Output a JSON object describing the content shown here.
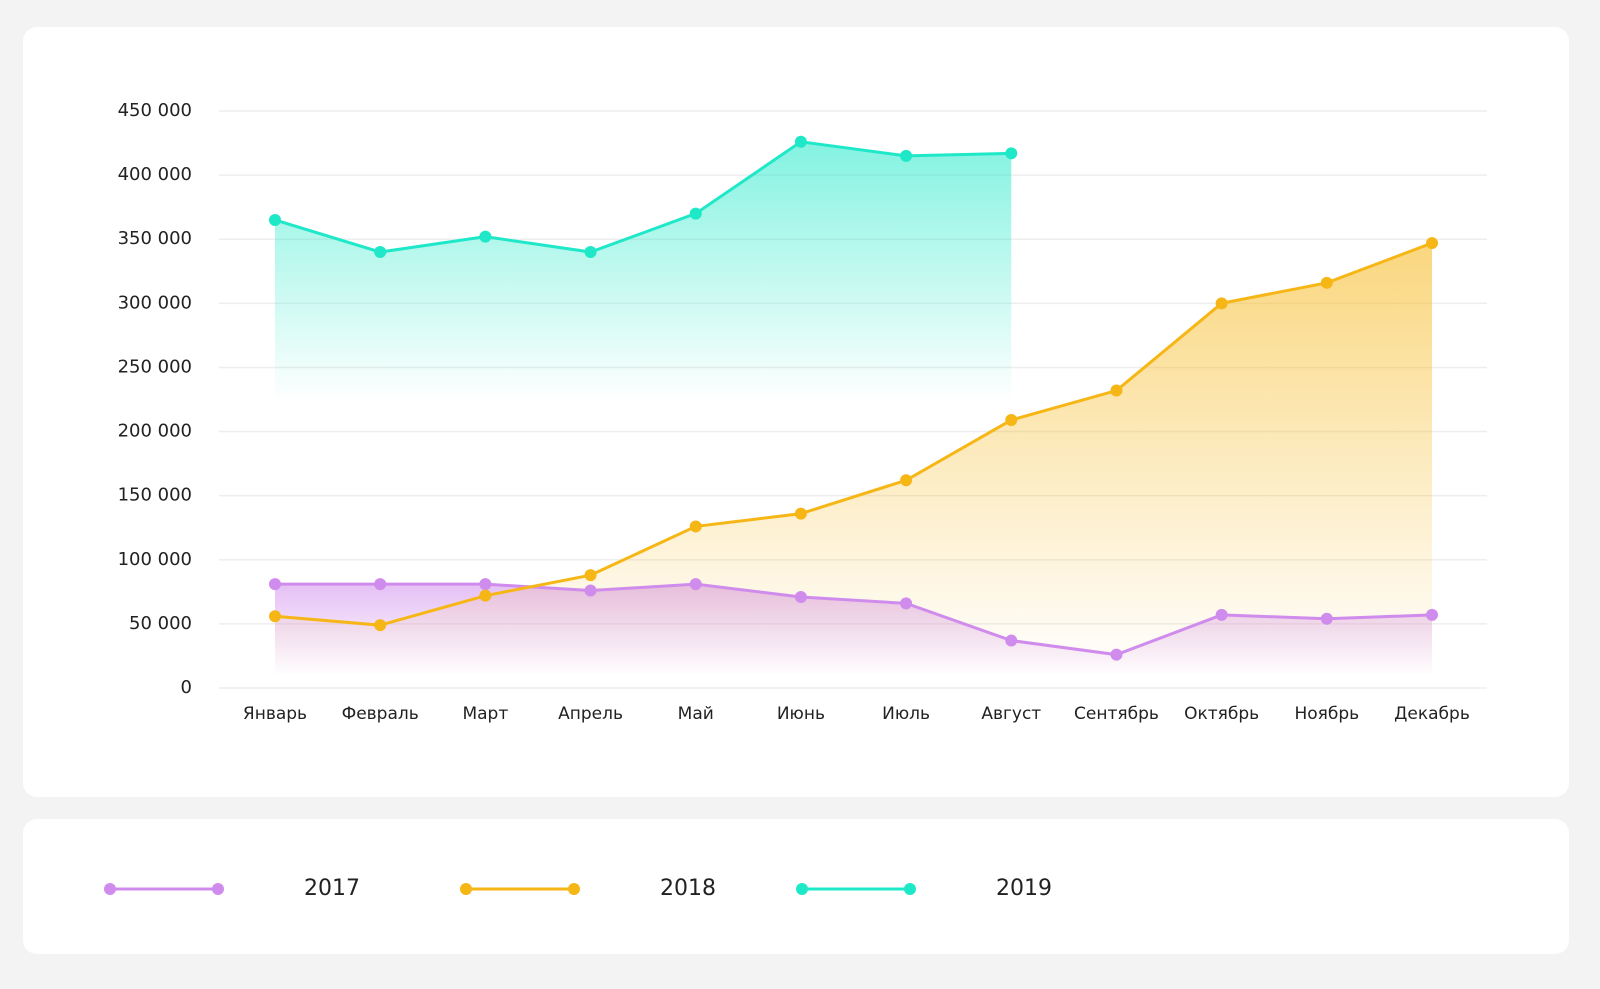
{
  "chart_data": {
    "type": "line",
    "categories": [
      "Январь",
      "Февраль",
      "Март",
      "Апрель",
      "Май",
      "Июнь",
      "Июль",
      "Август",
      "Сентябрь",
      "Октябрь",
      "Ноябрь",
      "Декабрь"
    ],
    "series": [
      {
        "name": "2017",
        "color": "#d08cec",
        "values": [
          81000,
          81000,
          81000,
          76000,
          81000,
          71000,
          66000,
          37000,
          26000,
          57000,
          54000,
          57000
        ]
      },
      {
        "name": "2018",
        "color": "#f6b616",
        "values": [
          56000,
          49000,
          72000,
          88000,
          126000,
          136000,
          162000,
          209000,
          232000,
          300000,
          316000,
          347000
        ]
      },
      {
        "name": "2019",
        "color": "#1ee8c8",
        "values": [
          365000,
          340000,
          352000,
          340000,
          370000,
          426000,
          415000,
          417000,
          null,
          null,
          null,
          null
        ]
      }
    ],
    "ylim": [
      0,
      450000
    ],
    "yticks": [
      0,
      {
        "value": 50000,
        "label": "50 000"
      },
      {
        "value": 100000,
        "label": "100 000"
      },
      {
        "value": 150000,
        "label": "150 000"
      },
      {
        "value": 200000,
        "label": "200 000"
      },
      {
        "value": 250000,
        "label": "250 000"
      },
      {
        "value": 300000,
        "label": "300 000"
      },
      {
        "value": 350000,
        "label": "350 000"
      },
      {
        "value": 400000,
        "label": "400 000"
      },
      {
        "value": 450000,
        "label": "450 000"
      }
    ],
    "grid": true,
    "area": true
  }
}
